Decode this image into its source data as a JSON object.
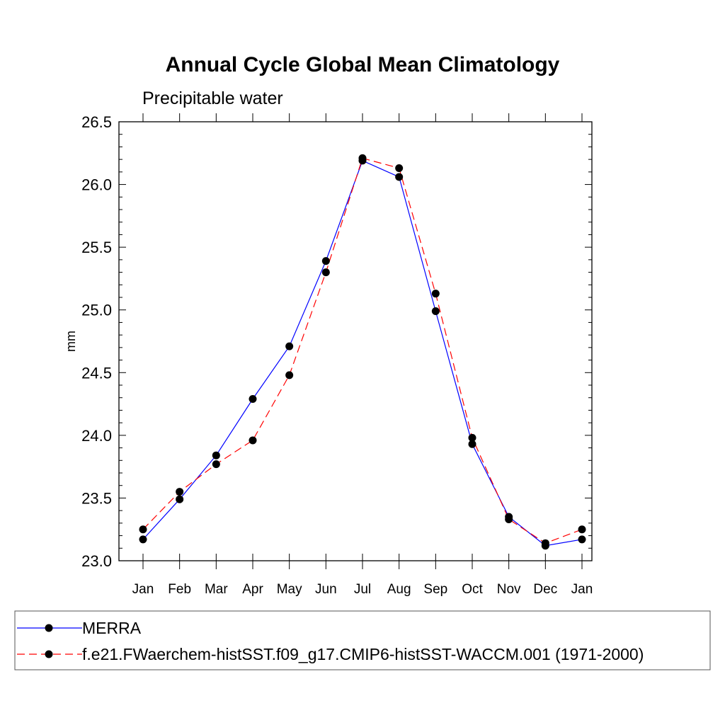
{
  "chart_data": {
    "type": "line",
    "title": "Annual Cycle Global Mean Climatology",
    "subtitle": "Precipitable water",
    "xlabel": "",
    "ylabel": "mm",
    "categories": [
      "Jan",
      "Feb",
      "Mar",
      "Apr",
      "May",
      "Jun",
      "Jul",
      "Aug",
      "Sep",
      "Oct",
      "Nov",
      "Dec",
      "Jan"
    ],
    "ylim": [
      23.0,
      26.5
    ],
    "yticks": [
      "23.0",
      "23.5",
      "24.0",
      "24.5",
      "25.0",
      "25.5",
      "26.0",
      "26.5"
    ],
    "series": [
      {
        "name": "MERRA",
        "color": "#0000ff",
        "dash": "solid",
        "values": [
          23.17,
          23.49,
          23.84,
          24.29,
          24.71,
          25.39,
          26.19,
          26.06,
          24.99,
          23.93,
          23.35,
          23.12,
          23.17
        ]
      },
      {
        "name": "f.e21.FWaerchem-histSST.f09_g17.CMIP6-histSST-WACCM.001 (1971-2000)",
        "color": "#ff0000",
        "dash": "dashed",
        "values": [
          23.25,
          23.55,
          23.77,
          23.96,
          24.48,
          25.3,
          26.21,
          26.13,
          25.13,
          23.98,
          23.33,
          23.14,
          23.25
        ]
      }
    ],
    "legend_position": "bottom",
    "grid": false
  }
}
